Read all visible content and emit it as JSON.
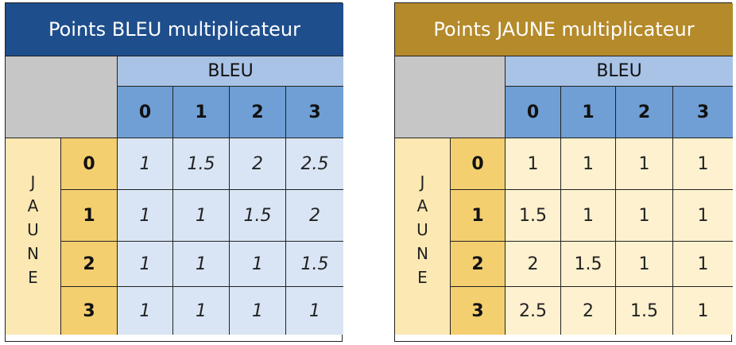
{
  "bleu_table": {
    "title": "Points BLEU multiplicateur",
    "col_group": "BLEU",
    "row_group_letters": [
      "J",
      "A",
      "U",
      "N",
      "E"
    ],
    "col_headers": [
      "0",
      "1",
      "2",
      "3"
    ],
    "row_headers": [
      "0",
      "1",
      "2",
      "3"
    ],
    "rows": [
      [
        "1",
        "1.5",
        "2",
        "2.5"
      ],
      [
        "1",
        "1",
        "1.5",
        "2"
      ],
      [
        "1",
        "1",
        "1",
        "1.5"
      ],
      [
        "1",
        "1",
        "1",
        "1"
      ]
    ]
  },
  "jaune_table": {
    "title": "Points JAUNE multiplicateur",
    "col_group": "BLEU",
    "row_group_letters": [
      "J",
      "A",
      "U",
      "N",
      "E"
    ],
    "col_headers": [
      "0",
      "1",
      "2",
      "3"
    ],
    "row_headers": [
      "0",
      "1",
      "2",
      "3"
    ],
    "rows": [
      [
        "1",
        "1",
        "1",
        "1"
      ],
      [
        "1.5",
        "1",
        "1",
        "1"
      ],
      [
        "2",
        "1.5",
        "1",
        "1"
      ],
      [
        "2.5",
        "2",
        "1.5",
        "1"
      ]
    ]
  },
  "colors": {
    "blue_title": "#1f4e8c",
    "gold_title": "#b48a2a",
    "blue_group_header": "#a9c3e6",
    "blue_col_header": "#6f9fd4",
    "blue_values": "#d9e5f4",
    "yellow_row_group": "#fbe8b3",
    "yellow_row_header": "#f4cf70",
    "yellow_values": "#fdf1cf",
    "corner_gray": "#c6c6c6"
  }
}
